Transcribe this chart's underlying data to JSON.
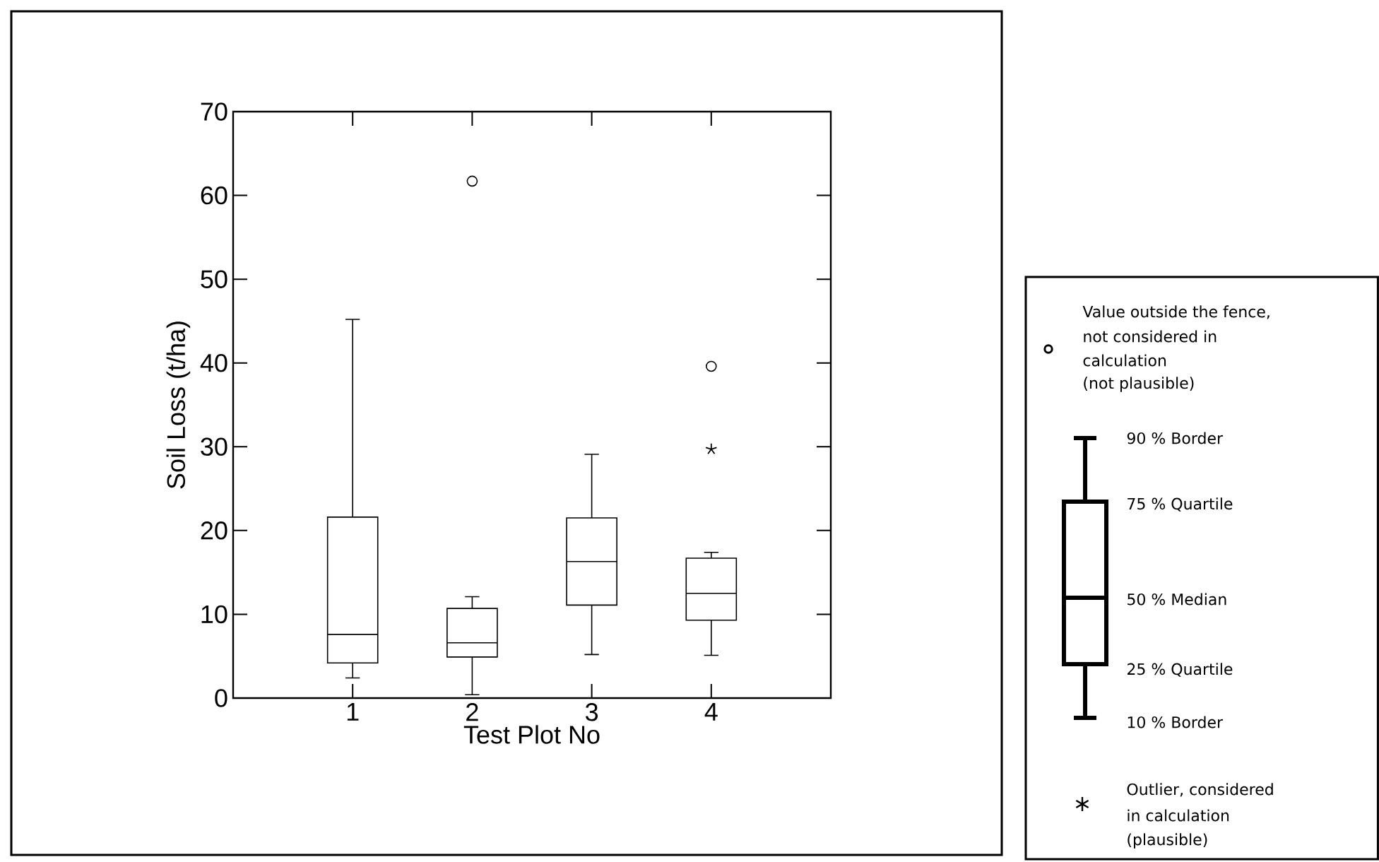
{
  "chart_data": {
    "type": "box",
    "xlabel": "Test Plot No",
    "ylabel": "Soil Loss (t/ha)",
    "categories": [
      "1",
      "2",
      "3",
      "4"
    ],
    "ylim": [
      0,
      70
    ],
    "yticks": [
      0,
      10,
      20,
      30,
      40,
      50,
      60,
      70
    ],
    "boxes": [
      {
        "low": 2.4,
        "q1": 4.2,
        "median": 7.6,
        "q3": 21.6,
        "high": 45.2
      },
      {
        "low": 0.4,
        "q1": 4.9,
        "median": 6.6,
        "q3": 10.7,
        "high": 12.1,
        "outliers": [
          61.7
        ]
      },
      {
        "low": 5.2,
        "q1": 11.1,
        "median": 16.3,
        "q3": 21.5,
        "high": 29.1
      },
      {
        "low": 5.1,
        "q1": 9.3,
        "median": 12.5,
        "q3": 16.7,
        "high": 17.4,
        "outliers": [
          39.6
        ]
      }
    ],
    "series": [
      {
        "type": "scatter",
        "marker": "cross",
        "color": "#000000",
        "x": [
          "4"
        ],
        "values": [
          29.7
        ]
      }
    ],
    "annotations": [
      "Value outside the fence,",
      "not considered in",
      "calculation",
      "(not plausible)",
      "90 % Border",
      "75 % Quartile",
      "50 % Median",
      "25 % Quartile",
      "10 % Border",
      "Outlier, considered",
      "in calculation",
      "(plausible)"
    ]
  }
}
